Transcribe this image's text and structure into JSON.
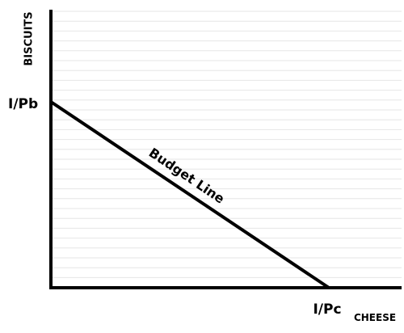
{
  "axes": {
    "y_label": "BISCUITS",
    "x_label": "CHEESE",
    "y_intercept_label": "I/Pb",
    "x_intercept_label": "I/Pc"
  },
  "budget_line": {
    "label": "Budget Line"
  },
  "grid": {
    "horizontal_lines": true
  },
  "colors": {
    "axis": "#000000",
    "line": "#000000",
    "grid": "#e6e6e6"
  }
}
